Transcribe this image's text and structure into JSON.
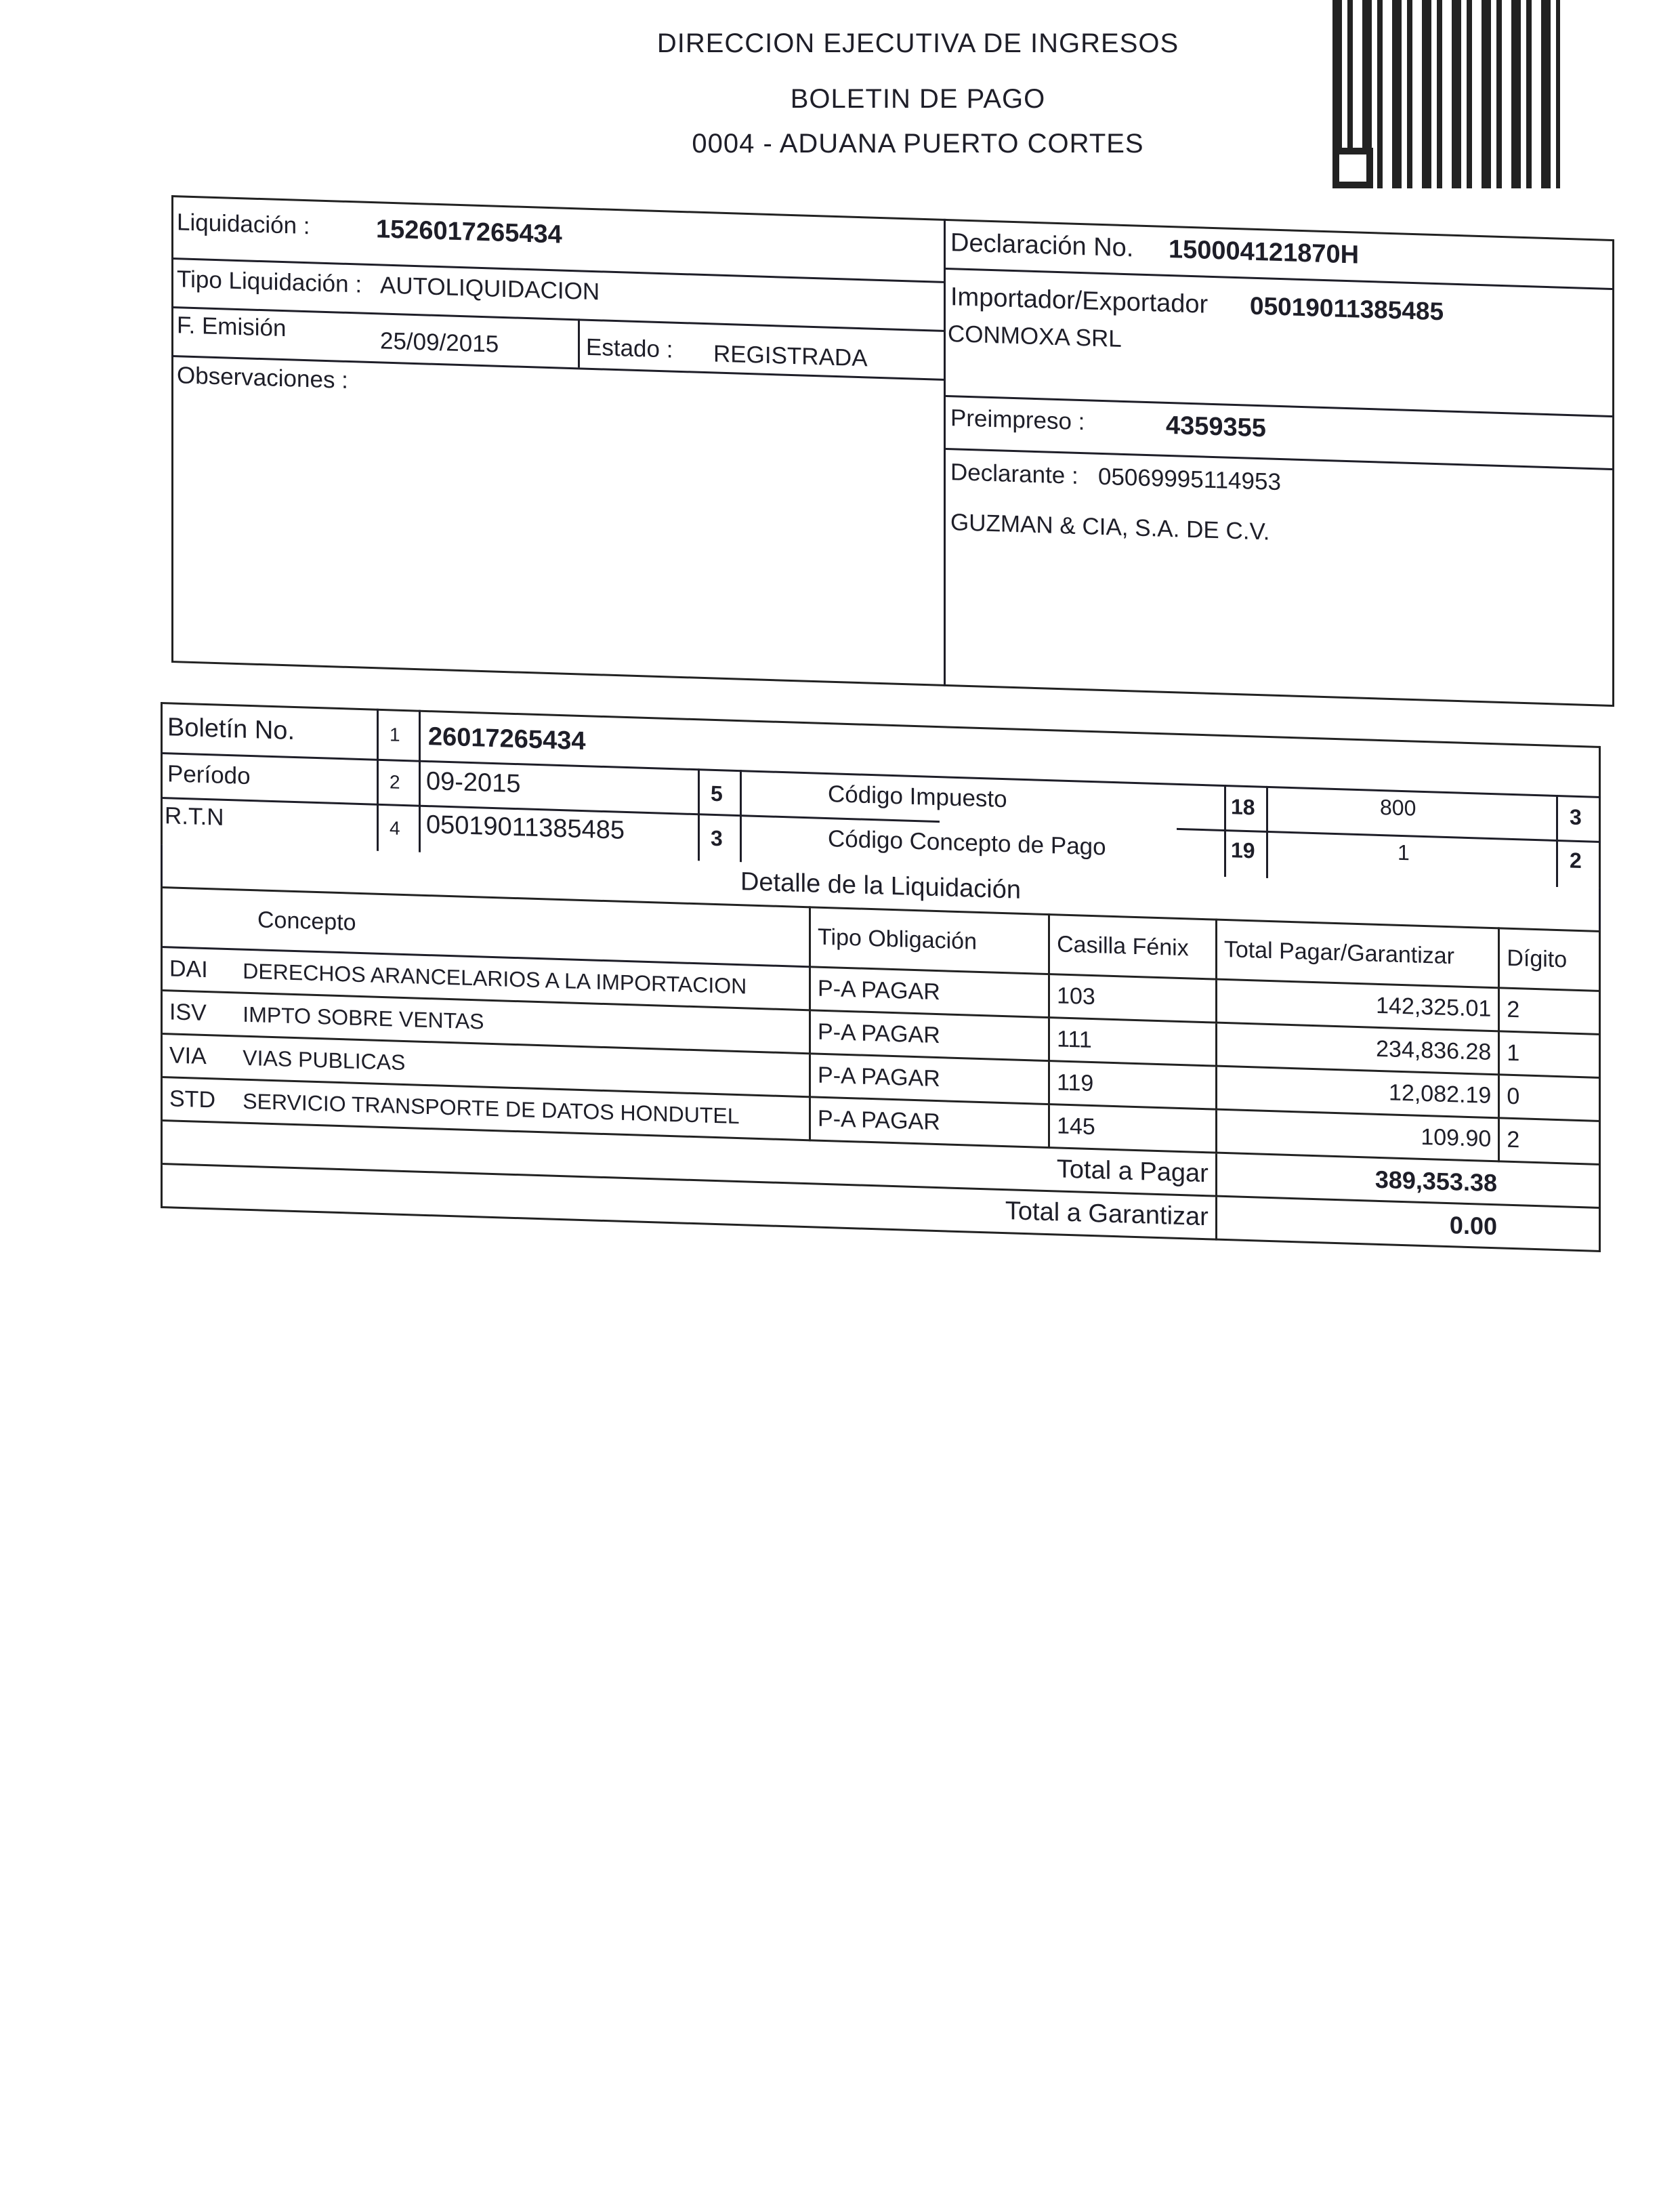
{
  "header": {
    "agency": "DIRECCION EJECUTIVA DE INGRESOS",
    "doc_title": "BOLETIN DE PAGO",
    "office": "0004 - ADUANA PUERTO CORTES"
  },
  "qr_code": "qr-code",
  "info": {
    "liquidacion_label": "Liquidación :",
    "liquidacion": "1526017265434",
    "tipo_label": "Tipo Liquidación :",
    "tipo": "AUTOLIQUIDACION",
    "emision_label": "F. Emisión",
    "emision": "25/09/2015",
    "estado_label": "Estado :",
    "estado": "REGISTRADA",
    "observaciones_label": "Observaciones :",
    "declaracion_label": "Declaración No.",
    "declaracion": "150004121870H",
    "importador_label": "Importador/Exportador",
    "importador_id": "05019011385485",
    "importador_name": "CONMOXA SRL",
    "preimpreso_label": "Preimpreso :",
    "preimpreso": "4359355",
    "declarante_label": "Declarante :",
    "declarante_id": "05069995114953",
    "declarante_name": "GUZMAN & CIA, S.A. DE C.V."
  },
  "boletin": {
    "boletin_label": "Boletín No.",
    "boletin_n": "1",
    "boletin": "26017265434",
    "periodo_label": "Período",
    "periodo_n": "2",
    "periodo": "09-2015",
    "rtn_label": "R.T.N",
    "rtn_n": "4",
    "rtn": "05019011385485",
    "box5": "5",
    "box3": "3",
    "impuesto_label": "Código Impuesto",
    "impuesto_n": "18",
    "impuesto": "800",
    "impuesto_d": "3",
    "concepto_label": "Código Concepto de Pago",
    "concepto_n": "19",
    "concepto": "1",
    "concepto_d": "2"
  },
  "detalle": {
    "title": "Detalle de la Liquidación",
    "columns": [
      "Concepto",
      "Tipo Obligación",
      "Casilla Fénix",
      "Total Pagar/Garantizar",
      "Dígito"
    ],
    "rows": [
      {
        "code": "DAI",
        "concepto": "DERECHOS ARANCELARIOS A LA IMPORTACION",
        "tipo": "P-A PAGAR",
        "casilla": "103",
        "total": "142,325.01",
        "digito": "2"
      },
      {
        "code": "ISV",
        "concepto": "IMPTO SOBRE VENTAS",
        "tipo": "P-A PAGAR",
        "casilla": "111",
        "total": "234,836.28",
        "digito": "1"
      },
      {
        "code": "VIA",
        "concepto": "VIAS PUBLICAS",
        "tipo": "P-A PAGAR",
        "casilla": "119",
        "total": "12,082.19",
        "digito": "0"
      },
      {
        "code": "STD",
        "concepto": "SERVICIO TRANSPORTE DE DATOS HONDUTEL",
        "tipo": "P-A PAGAR",
        "casilla": "145",
        "total": "109.90",
        "digito": "2"
      }
    ],
    "total_pagar_label": "Total  a Pagar",
    "total_pagar": "389,353.38",
    "total_garantizar_label": "Total  a Garantizar",
    "total_garantizar": "0.00"
  }
}
